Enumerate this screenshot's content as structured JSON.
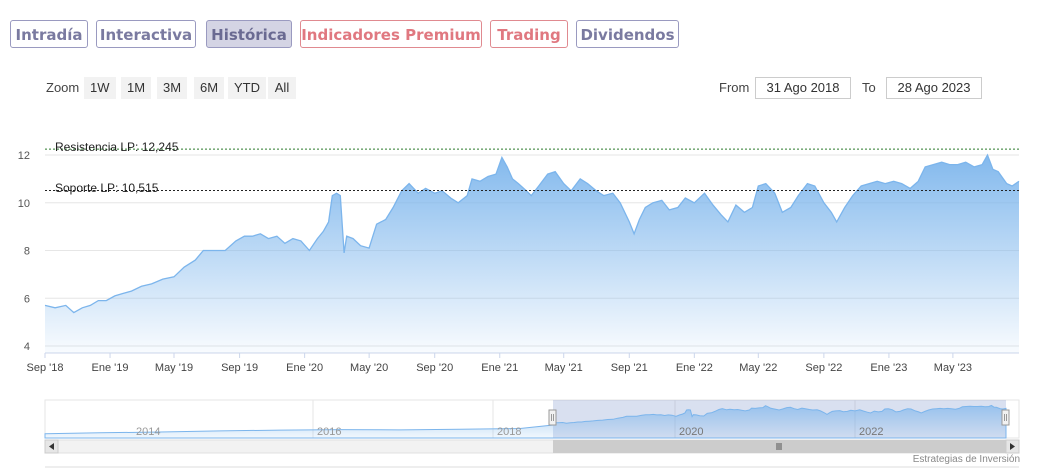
{
  "tabs": [
    {
      "label": "Intradía"
    },
    {
      "label": "Interactiva"
    },
    {
      "label": "Histórica"
    },
    {
      "label": "Indicadores Premium"
    },
    {
      "label": "Trading"
    },
    {
      "label": "Dividendos"
    }
  ],
  "zoom": {
    "label": "Zoom",
    "buttons": [
      "1W",
      "1M",
      "3M",
      "6M",
      "YTD",
      "All"
    ]
  },
  "range": {
    "from_label": "From",
    "from_value": "31 Ago 2018",
    "to_label": "To",
    "to_value": "28 Ago 2023"
  },
  "credit": "Estrategias de Inversión",
  "colors": {
    "line": "#7cb5ec",
    "fill_top": "#7cb5ec",
    "resistance": "#2a7a2a",
    "support": "#222222"
  },
  "chart_data": {
    "type": "area",
    "ylim": [
      4,
      12.5
    ],
    "yticks": [
      4,
      6,
      8,
      10,
      12
    ],
    "xlim": [
      "2018-09-01",
      "2023-09-02"
    ],
    "xticks": [
      {
        "date": "2018-09-01",
        "label": "Sep '18"
      },
      {
        "date": "2019-01-01",
        "label": "Ene '19"
      },
      {
        "date": "2019-05-01",
        "label": "May '19"
      },
      {
        "date": "2019-09-01",
        "label": "Sep '19"
      },
      {
        "date": "2020-01-01",
        "label": "Ene '20"
      },
      {
        "date": "2020-05-01",
        "label": "May '20"
      },
      {
        "date": "2020-09-01",
        "label": "Sep '20"
      },
      {
        "date": "2021-01-01",
        "label": "Ene '21"
      },
      {
        "date": "2021-05-01",
        "label": "May '21"
      },
      {
        "date": "2021-09-01",
        "label": "Sep '21"
      },
      {
        "date": "2022-01-01",
        "label": "Ene '22"
      },
      {
        "date": "2022-05-01",
        "label": "May '22"
      },
      {
        "date": "2022-09-01",
        "label": "Sep '22"
      },
      {
        "date": "2023-01-01",
        "label": "Ene '23"
      },
      {
        "date": "2023-05-01",
        "label": "May '23"
      }
    ],
    "resistance": {
      "label": "Resistencia LP: 12,245",
      "value": 12.245
    },
    "support": {
      "label": "Soporte LP: 10,515",
      "value": 10.515
    },
    "series": [
      {
        "points": [
          [
            "2018-09-01",
            5.7
          ],
          [
            "2018-09-20",
            5.6
          ],
          [
            "2018-10-10",
            5.7
          ],
          [
            "2018-10-25",
            5.4
          ],
          [
            "2018-11-10",
            5.6
          ],
          [
            "2018-11-25",
            5.7
          ],
          [
            "2018-12-10",
            5.9
          ],
          [
            "2018-12-25",
            5.9
          ],
          [
            "2019-01-10",
            6.1
          ],
          [
            "2019-01-25",
            6.2
          ],
          [
            "2019-02-10",
            6.3
          ],
          [
            "2019-03-01",
            6.5
          ],
          [
            "2019-03-20",
            6.6
          ],
          [
            "2019-04-10",
            6.8
          ],
          [
            "2019-05-01",
            6.9
          ],
          [
            "2019-05-20",
            7.3
          ],
          [
            "2019-06-10",
            7.6
          ],
          [
            "2019-06-25",
            8.0
          ],
          [
            "2019-07-15",
            8.0
          ],
          [
            "2019-08-05",
            8.0
          ],
          [
            "2019-08-25",
            8.4
          ],
          [
            "2019-09-10",
            8.6
          ],
          [
            "2019-09-25",
            8.6
          ],
          [
            "2019-10-10",
            8.7
          ],
          [
            "2019-10-25",
            8.5
          ],
          [
            "2019-11-10",
            8.6
          ],
          [
            "2019-11-25",
            8.3
          ],
          [
            "2019-12-10",
            8.5
          ],
          [
            "2019-12-25",
            8.4
          ],
          [
            "2020-01-10",
            8.0
          ],
          [
            "2020-01-25",
            8.5
          ],
          [
            "2020-02-05",
            8.8
          ],
          [
            "2020-02-15",
            9.2
          ],
          [
            "2020-02-22",
            10.3
          ],
          [
            "2020-03-01",
            10.4
          ],
          [
            "2020-03-08",
            10.3
          ],
          [
            "2020-03-15",
            7.9
          ],
          [
            "2020-03-20",
            8.6
          ],
          [
            "2020-04-01",
            8.5
          ],
          [
            "2020-04-15",
            8.2
          ],
          [
            "2020-05-01",
            8.1
          ],
          [
            "2020-05-15",
            9.1
          ],
          [
            "2020-06-01",
            9.3
          ],
          [
            "2020-06-15",
            9.8
          ],
          [
            "2020-07-01",
            10.5
          ],
          [
            "2020-07-15",
            10.8
          ],
          [
            "2020-08-01",
            10.4
          ],
          [
            "2020-08-15",
            10.6
          ],
          [
            "2020-09-01",
            10.4
          ],
          [
            "2020-09-15",
            10.5
          ],
          [
            "2020-10-01",
            10.2
          ],
          [
            "2020-10-15",
            10.0
          ],
          [
            "2020-11-01",
            10.3
          ],
          [
            "2020-11-10",
            11.0
          ],
          [
            "2020-11-25",
            10.9
          ],
          [
            "2020-12-10",
            11.1
          ],
          [
            "2020-12-25",
            11.2
          ],
          [
            "2021-01-05",
            11.9
          ],
          [
            "2021-01-15",
            11.5
          ],
          [
            "2021-01-25",
            11.0
          ],
          [
            "2021-02-05",
            10.8
          ],
          [
            "2021-02-20",
            10.5
          ],
          [
            "2021-03-01",
            10.3
          ],
          [
            "2021-03-15",
            10.7
          ],
          [
            "2021-04-01",
            11.2
          ],
          [
            "2021-04-15",
            11.3
          ],
          [
            "2021-05-01",
            10.8
          ],
          [
            "2021-05-15",
            10.5
          ],
          [
            "2021-06-01",
            11.0
          ],
          [
            "2021-06-15",
            10.8
          ],
          [
            "2021-07-01",
            10.5
          ],
          [
            "2021-07-15",
            10.3
          ],
          [
            "2021-08-01",
            10.4
          ],
          [
            "2021-08-15",
            10.0
          ],
          [
            "2021-09-01",
            9.2
          ],
          [
            "2021-09-10",
            8.7
          ],
          [
            "2021-09-20",
            9.3
          ],
          [
            "2021-10-01",
            9.8
          ],
          [
            "2021-10-15",
            10.0
          ],
          [
            "2021-11-01",
            10.1
          ],
          [
            "2021-11-15",
            9.7
          ],
          [
            "2021-12-01",
            9.8
          ],
          [
            "2021-12-15",
            10.2
          ],
          [
            "2022-01-01",
            10.0
          ],
          [
            "2022-01-20",
            10.4
          ],
          [
            "2022-02-05",
            9.9
          ],
          [
            "2022-02-20",
            9.5
          ],
          [
            "2022-03-05",
            9.2
          ],
          [
            "2022-03-20",
            9.9
          ],
          [
            "2022-04-05",
            9.6
          ],
          [
            "2022-04-20",
            9.8
          ],
          [
            "2022-05-01",
            10.7
          ],
          [
            "2022-05-15",
            10.8
          ],
          [
            "2022-06-01",
            10.4
          ],
          [
            "2022-06-15",
            9.6
          ],
          [
            "2022-07-01",
            9.8
          ],
          [
            "2022-07-15",
            10.3
          ],
          [
            "2022-08-01",
            10.8
          ],
          [
            "2022-08-15",
            10.7
          ],
          [
            "2022-09-01",
            10.0
          ],
          [
            "2022-09-15",
            9.6
          ],
          [
            "2022-09-25",
            9.2
          ],
          [
            "2022-10-10",
            9.8
          ],
          [
            "2022-10-25",
            10.3
          ],
          [
            "2022-11-10",
            10.7
          ],
          [
            "2022-11-25",
            10.8
          ],
          [
            "2022-12-10",
            10.9
          ],
          [
            "2022-12-25",
            10.8
          ],
          [
            "2023-01-10",
            10.9
          ],
          [
            "2023-01-25",
            10.8
          ],
          [
            "2023-02-10",
            10.6
          ],
          [
            "2023-02-25",
            10.9
          ],
          [
            "2023-03-10",
            11.5
          ],
          [
            "2023-03-25",
            11.6
          ],
          [
            "2023-04-10",
            11.7
          ],
          [
            "2023-04-25",
            11.6
          ],
          [
            "2023-05-10",
            11.6
          ],
          [
            "2023-05-25",
            11.7
          ],
          [
            "2023-06-10",
            11.5
          ],
          [
            "2023-06-25",
            11.6
          ],
          [
            "2023-07-05",
            12.0
          ],
          [
            "2023-07-15",
            11.4
          ],
          [
            "2023-07-25",
            11.3
          ],
          [
            "2023-08-10",
            10.8
          ],
          [
            "2023-08-20",
            10.7
          ],
          [
            "2023-09-02",
            10.9
          ]
        ]
      }
    ],
    "navigator": {
      "year_labels": [
        "2014",
        "2016",
        "2018",
        "2020",
        "2022"
      ]
    }
  }
}
